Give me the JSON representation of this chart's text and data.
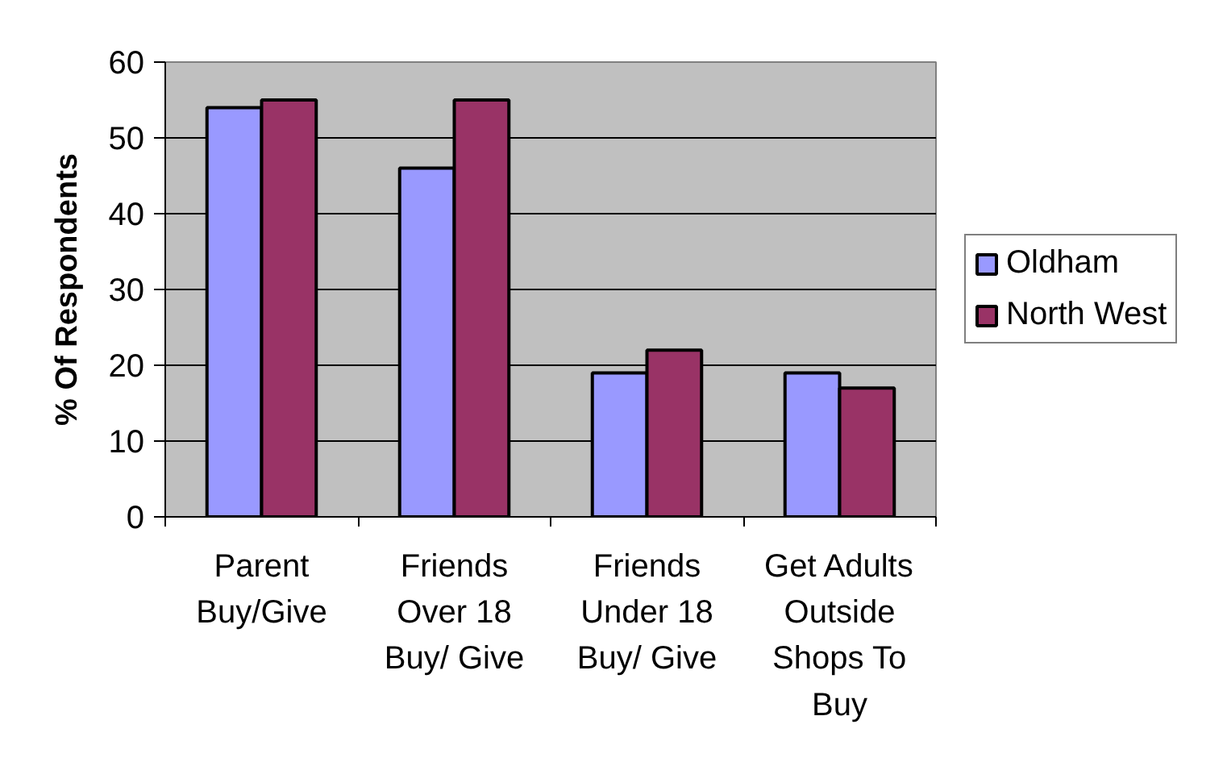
{
  "chart_data": {
    "type": "bar",
    "ylabel": "% Of Respondents",
    "categories": [
      "Parent Buy/Give",
      "Friends Over 18 Buy/ Give",
      "Friends Under 18 Buy/ Give",
      "Get Adults Outside Shops To Buy"
    ],
    "series": [
      {
        "name": "Oldham",
        "color": "#9999ff",
        "values": [
          54,
          46,
          19,
          19
        ]
      },
      {
        "name": "North West",
        "color": "#993366",
        "values": [
          55,
          55,
          22,
          17
        ]
      }
    ],
    "ylim": [
      0,
      60
    ],
    "yticks": [
      0,
      10,
      20,
      30,
      40,
      50,
      60
    ],
    "grid": "y",
    "legend": "right"
  }
}
